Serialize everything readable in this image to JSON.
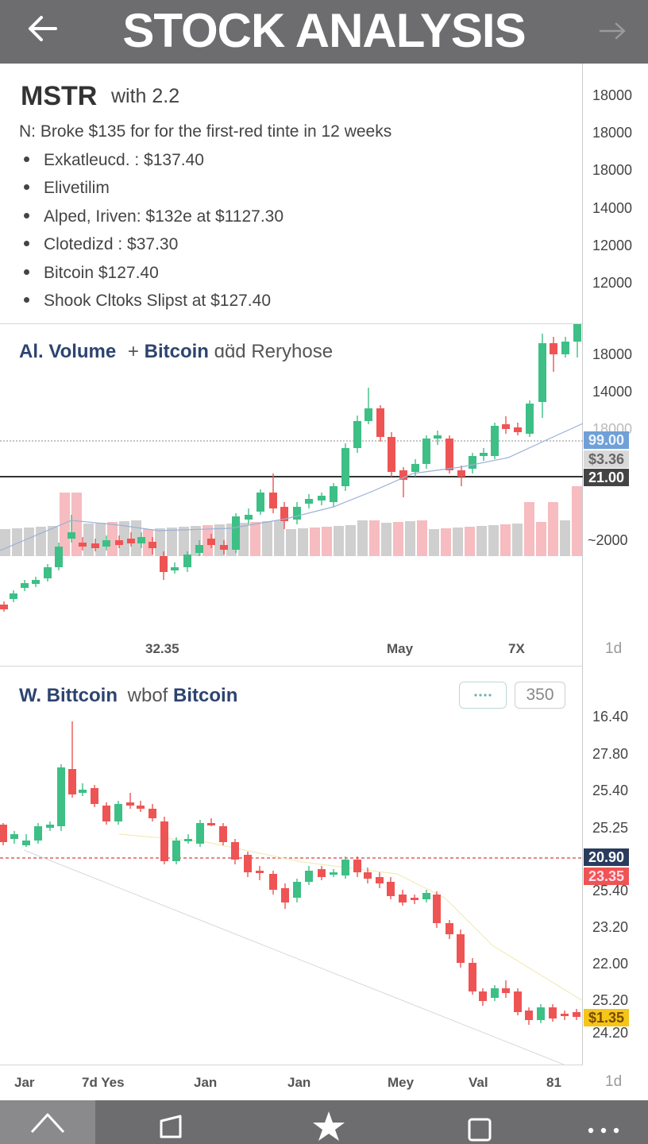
{
  "header": {
    "title": "STOCK ANALYSIS",
    "back_icon": "arrow-left-icon",
    "forward_icon": "arrow-right-icon"
  },
  "info": {
    "symbol": "MSTR",
    "symbol_sub": "with 2.2",
    "headline": "N: Broke $135 for for the first-red tinte in 12 weeks",
    "bullets": [
      "Exkatleucd. : $137.40",
      "Elivetilim",
      "Alped, Iriven: $132e at $1127.30",
      "Clotedizd : $37.30",
      "Bitcoin $127.40",
      "Shook Cltoks Slipst at $127.40"
    ]
  },
  "right_axis_top": [
    "18000",
    "18000",
    "18000",
    "14000",
    "12000",
    "12000",
    "18000",
    "14000",
    "18000",
    "~2000"
  ],
  "panel1": {
    "title_part1": "Al. Volume",
    "title_plus": "+",
    "title_part2": "Bitcoin",
    "title_part3": "ɑɑ̈d Reryhose",
    "price_tags": [
      "99.00",
      "$3.36",
      "21.00"
    ],
    "x_labels": [
      "32.35",
      "May",
      "7X"
    ],
    "timeframe": "1d"
  },
  "panel2": {
    "title_part1": "W. Bittcoin",
    "title_part2": "wbof",
    "title_part3": "Bitcoin",
    "button_value": "350",
    "button_icon": "dots-icon",
    "right_axis": [
      "16.40",
      "27.80",
      "25.40",
      "25.25",
      "25.40",
      "23.20",
      "22.00",
      "25.20",
      "24.20"
    ],
    "price_tags": [
      "20.90",
      "23.35",
      "$1.35"
    ],
    "x_labels": [
      "Jar",
      "7d Yes",
      "Jan",
      "Jan",
      "Mey",
      "Val",
      "81"
    ],
    "timeframe": "1d"
  },
  "bottom_nav": {
    "icons": [
      "home-icon",
      "bookmark-icon",
      "star-icon",
      "square-icon",
      "more-icon"
    ]
  },
  "colors": {
    "bar": "#6d6d6f",
    "up": "#3dbf86",
    "down": "#ee5454",
    "accent_blue": "#2d4470",
    "tag_blue": "#6fa0d8",
    "tag_dark": "#2a3c5e",
    "tag_yellow": "#f5c518"
  }
}
